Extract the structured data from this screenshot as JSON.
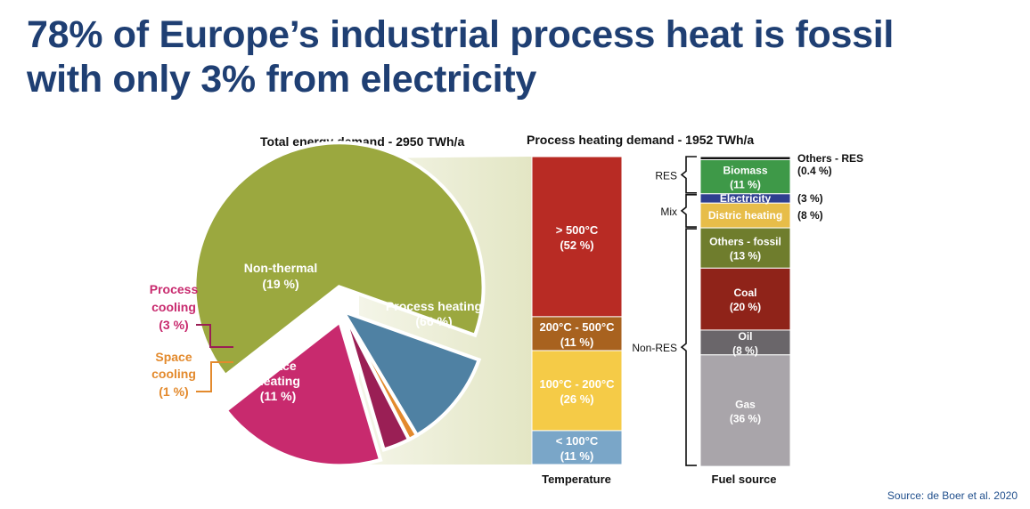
{
  "title": {
    "line1": "78% of Europe’s industrial process heat is fossil",
    "line2": "with only 3% from electricity"
  },
  "source": "Source: de Boer et al. 2020",
  "chart_data": [
    {
      "type": "pie",
      "title": "Total energy demand - 2950 TWh/a",
      "categories": [
        "Process heating",
        "Space heating",
        "Space cooling",
        "Process cooling",
        "Non-thermal"
      ],
      "values": [
        66,
        11,
        1,
        3,
        19
      ],
      "value_labels": [
        "(66 %)",
        "(11 %)",
        "(1 %)",
        "(3 %)",
        "(19 %)"
      ],
      "colors": [
        "#9ba83f",
        "#4f81a3",
        "#e38a2d",
        "#9a1f55",
        "#c82a6e"
      ]
    },
    {
      "type": "bar",
      "stacked": true,
      "title": "Process heating demand - 1952 TWh/a",
      "xlabel": "Temperature",
      "categories": [
        "> 500°C",
        "200°C - 500°C",
        "100°C - 200°C",
        "< 100°C"
      ],
      "values": [
        52,
        11,
        26,
        11
      ],
      "value_labels": [
        "(52 %)",
        "(11 %)",
        "(26 %)",
        "(11 %)"
      ],
      "colors": [
        "#b82b24",
        "#a8621f",
        "#f5cb47",
        "#7aa6c8"
      ],
      "label_colors": [
        "#ffffff",
        "#ffffff",
        "#ffffff",
        "#ffffff"
      ]
    },
    {
      "type": "bar",
      "stacked": true,
      "xlabel": "Fuel source",
      "categories": [
        "Others - RES",
        "Biomass",
        "Electricity",
        "Distric heating",
        "Others - fossil",
        "Coal",
        "Oil",
        "Gas"
      ],
      "values": [
        0.4,
        11,
        3,
        8,
        13,
        20,
        8,
        36
      ],
      "value_labels": [
        "(0.4 %)",
        "(11 %)",
        "(3 %)",
        "(8 %)",
        "(13 %)",
        "(20 %)",
        "(8 %)",
        "(36 %)"
      ],
      "colors": [
        "#111111",
        "#3e9948",
        "#2e3f8f",
        "#e7bd49",
        "#6f7d2d",
        "#8f2319",
        "#6a666a",
        "#a9a5aa"
      ],
      "groups": [
        {
          "name": "RES",
          "members": [
            "Others - RES",
            "Biomass"
          ]
        },
        {
          "name": "Mix",
          "members": [
            "Electricity",
            "Distric heating"
          ]
        },
        {
          "name": "Non-RES",
          "members": [
            "Others - fossil",
            "Coal",
            "Oil",
            "Gas"
          ]
        }
      ]
    }
  ]
}
